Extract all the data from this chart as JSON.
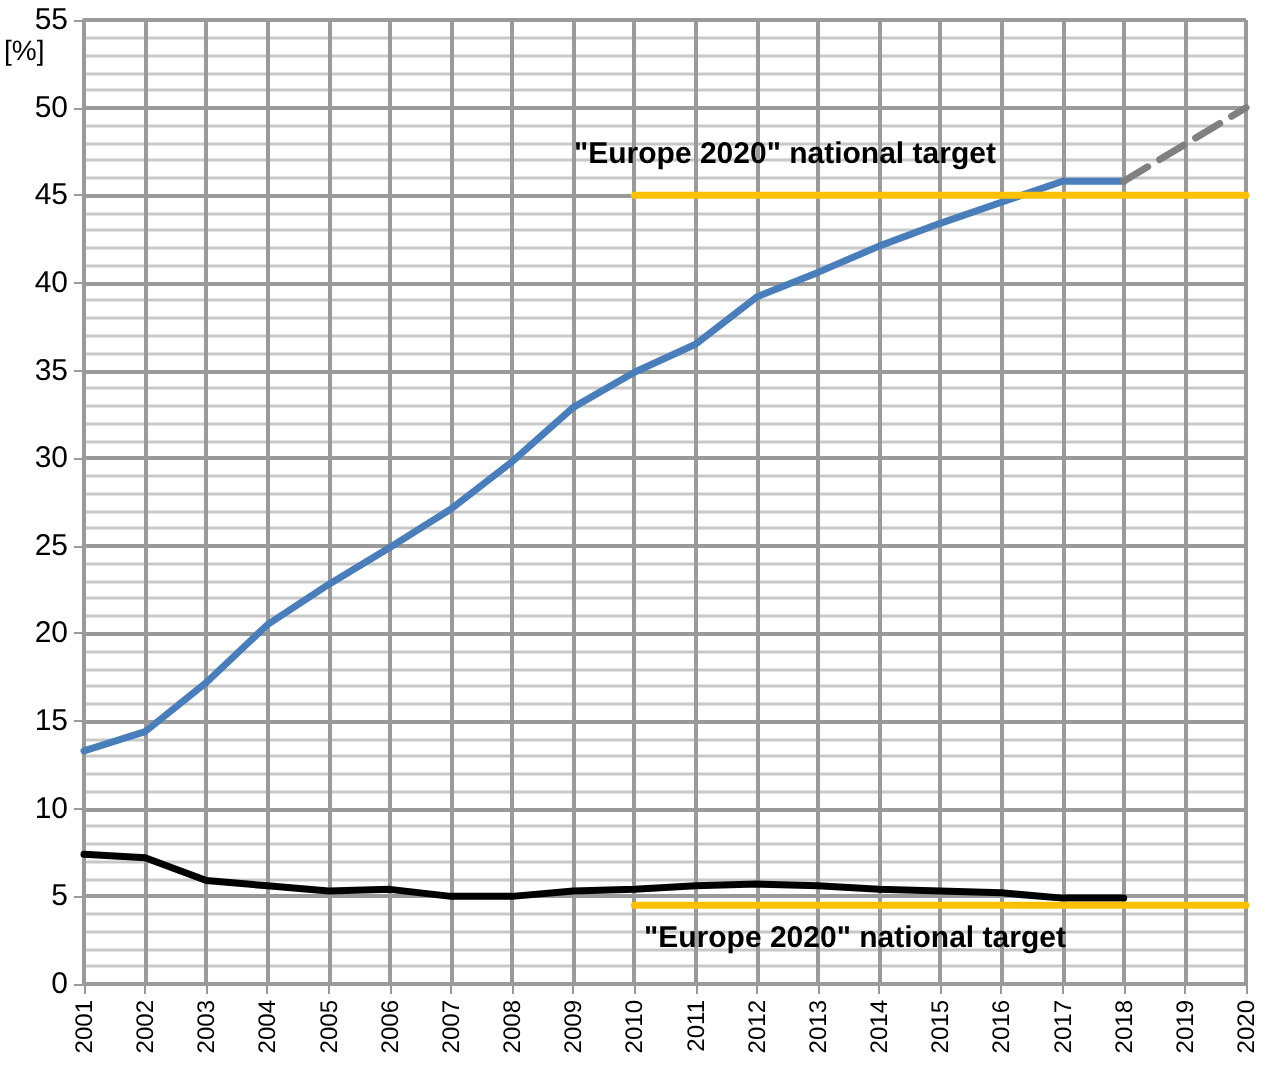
{
  "chart_data": {
    "type": "line",
    "ylabel": "[%]",
    "categories": [
      "2001",
      "2002",
      "2003",
      "2004",
      "2005",
      "2006",
      "2007",
      "2008",
      "2009",
      "2010",
      "2011",
      "2012",
      "2013",
      "2014",
      "2015",
      "2016",
      "2017",
      "2018",
      "2019",
      "2020"
    ],
    "series": [
      {
        "color": "#4a7ebb",
        "values": [
          13.3,
          14.4,
          17.2,
          20.5,
          22.8,
          24.9,
          27.1,
          29.8,
          32.9,
          34.9,
          36.5,
          39.2,
          40.6,
          42.1,
          43.4,
          44.6,
          45.8,
          45.8,
          null,
          null
        ]
      },
      {
        "color": "#808080",
        "line_style": "dashed",
        "values": [
          null,
          null,
          null,
          null,
          null,
          null,
          null,
          null,
          null,
          null,
          null,
          null,
          null,
          null,
          null,
          null,
          null,
          45.8,
          47.9,
          50.0
        ]
      },
      {
        "color": "#000000",
        "values": [
          7.4,
          7.2,
          5.9,
          5.6,
          5.3,
          5.4,
          5.0,
          5.0,
          5.3,
          5.4,
          5.6,
          5.7,
          5.6,
          5.4,
          5.3,
          5.2,
          4.9,
          4.9,
          null,
          null
        ]
      },
      {
        "color": "#ffc000",
        "values": [
          null,
          null,
          null,
          null,
          null,
          null,
          null,
          null,
          null,
          45,
          45,
          45,
          45,
          45,
          45,
          45,
          45,
          45,
          45,
          45
        ]
      },
      {
        "color": "#ffc000",
        "values": [
          null,
          null,
          null,
          null,
          null,
          null,
          null,
          null,
          null,
          4.5,
          4.5,
          4.5,
          4.5,
          4.5,
          4.5,
          4.5,
          4.5,
          4.5,
          4.5,
          4.5
        ]
      }
    ],
    "annotations": [
      "\"Europe 2020\" national target",
      "\"Europe 2020\" national target"
    ],
    "ylim": [
      0,
      55
    ],
    "yticks": [
      0,
      5,
      10,
      15,
      20,
      25,
      30,
      35,
      40,
      45,
      50,
      55
    ],
    "grid": true,
    "marker": "none",
    "line_style": "solid"
  }
}
